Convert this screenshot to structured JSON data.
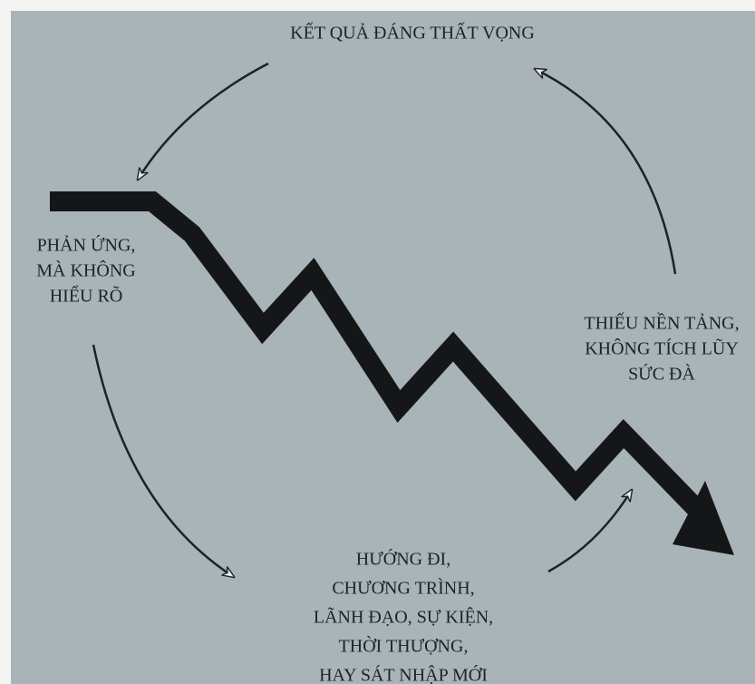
{
  "nodes": [
    {
      "lines": [
        "KẾT QUẢ ĐÁNG THẤT VỌNG"
      ]
    },
    {
      "lines": [
        "PHẢN ỨNG,",
        "MÀ KHÔNG",
        "HIỂU RÕ"
      ]
    },
    {
      "lines": [
        "HƯỚNG ĐI,",
        "CHƯƠNG TRÌNH,",
        "LÃNH ĐẠO, SỰ KIỆN,",
        "THỜI THƯỢNG,",
        "HAY SÁT NHẬP MỚI"
      ]
    },
    {
      "lines": [
        "THIẾU NỀN TẢNG,",
        "KHÔNG TÍCH LŨY",
        "SỨC ĐÀ"
      ]
    }
  ]
}
